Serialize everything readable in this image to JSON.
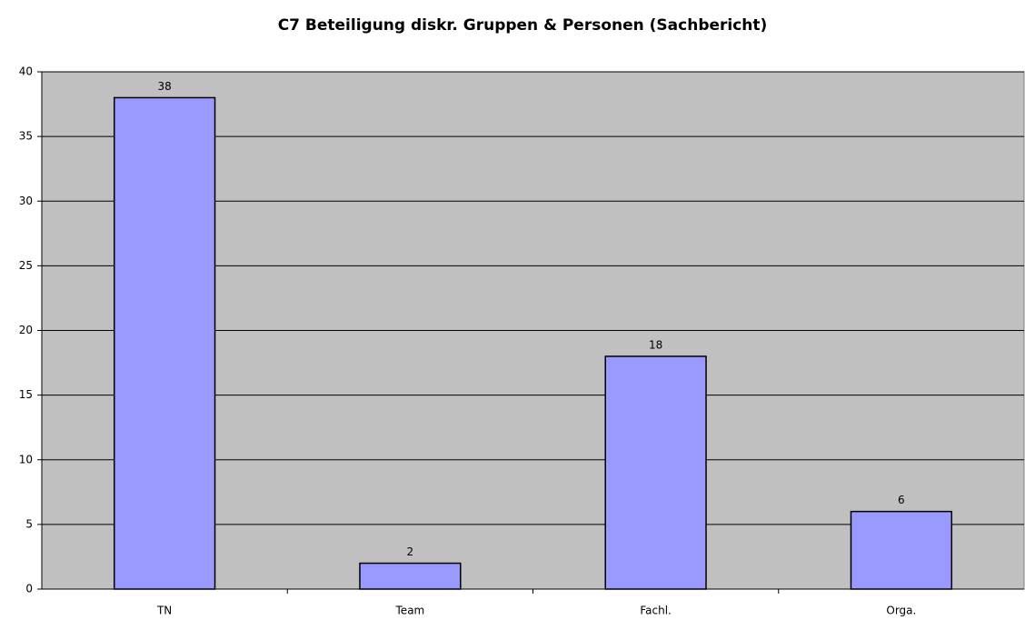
{
  "chart_data": {
    "type": "bar",
    "title": "C7 Beteiligung diskr. Gruppen & Personen (Sachbericht)",
    "categories": [
      "TN",
      "Team",
      "Fachl.",
      "Orga."
    ],
    "values": [
      38,
      2,
      18,
      6
    ],
    "color": "#9999ff",
    "ylim": [
      0,
      40
    ],
    "yticks": [
      0,
      5,
      10,
      15,
      20,
      25,
      30,
      35,
      40
    ],
    "grid": true
  }
}
